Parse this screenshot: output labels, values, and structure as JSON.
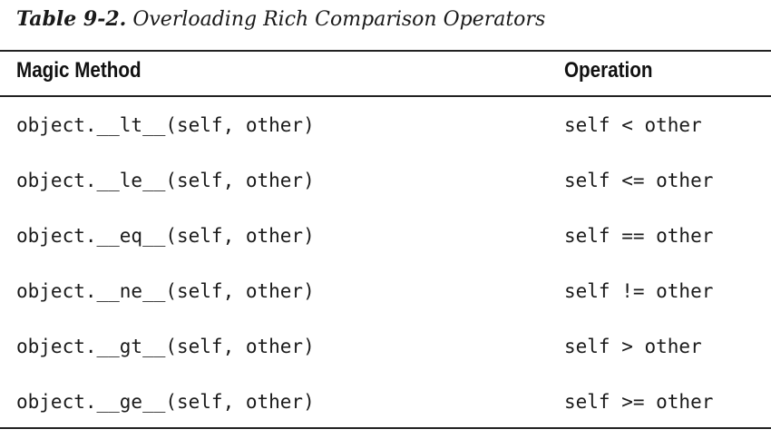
{
  "caption": {
    "label": "Table 9-2.",
    "title": "Overloading Rich Comparison Operators"
  },
  "table": {
    "headers": {
      "method": "Magic Method",
      "operation": "Operation"
    },
    "rows": [
      {
        "method": "object.__lt__(self, other)",
        "operation": "self < other"
      },
      {
        "method": "object.__le__(self, other)",
        "operation": "self <= other"
      },
      {
        "method": "object.__eq__(self, other)",
        "operation": "self == other"
      },
      {
        "method": "object.__ne__(self, other)",
        "operation": "self != other"
      },
      {
        "method": "object.__gt__(self, other)",
        "operation": "self > other"
      },
      {
        "method": "object.__ge__(self, other)",
        "operation": "self >= other"
      }
    ]
  }
}
